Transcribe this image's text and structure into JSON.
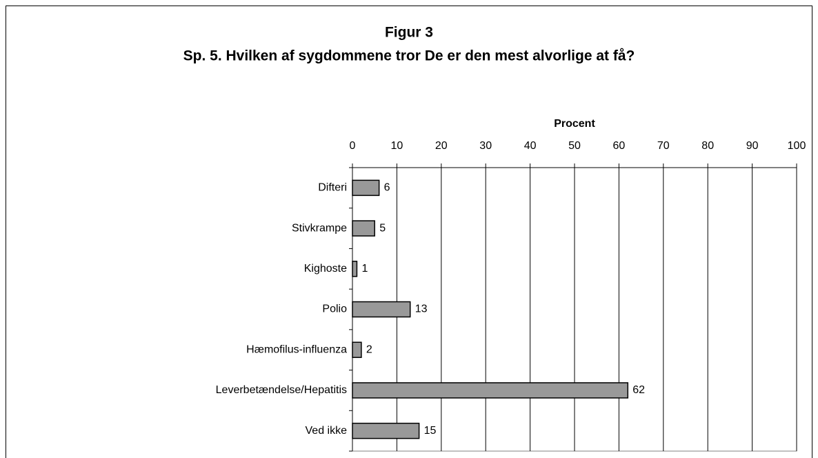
{
  "chart_data": {
    "type": "barh",
    "title": "Figur 3",
    "subtitle": "Sp. 5. Hvilken af sygdommene tror De er den mest alvorlige at få?",
    "x_label": "Procent",
    "categories": [
      "Difteri",
      "Stivkrampe",
      "Kighoste",
      "Polio",
      "Hæmofilus-influenza",
      "Leverbetændelse/Hepatitis",
      "Ved ikke"
    ],
    "values": [
      6,
      5,
      1,
      13,
      2,
      62,
      15
    ],
    "color": "#999999",
    "xlim": [
      0,
      100
    ],
    "xticks": [
      0,
      10,
      20,
      30,
      40,
      50,
      60,
      70,
      80,
      90,
      100
    ],
    "grid": true
  }
}
